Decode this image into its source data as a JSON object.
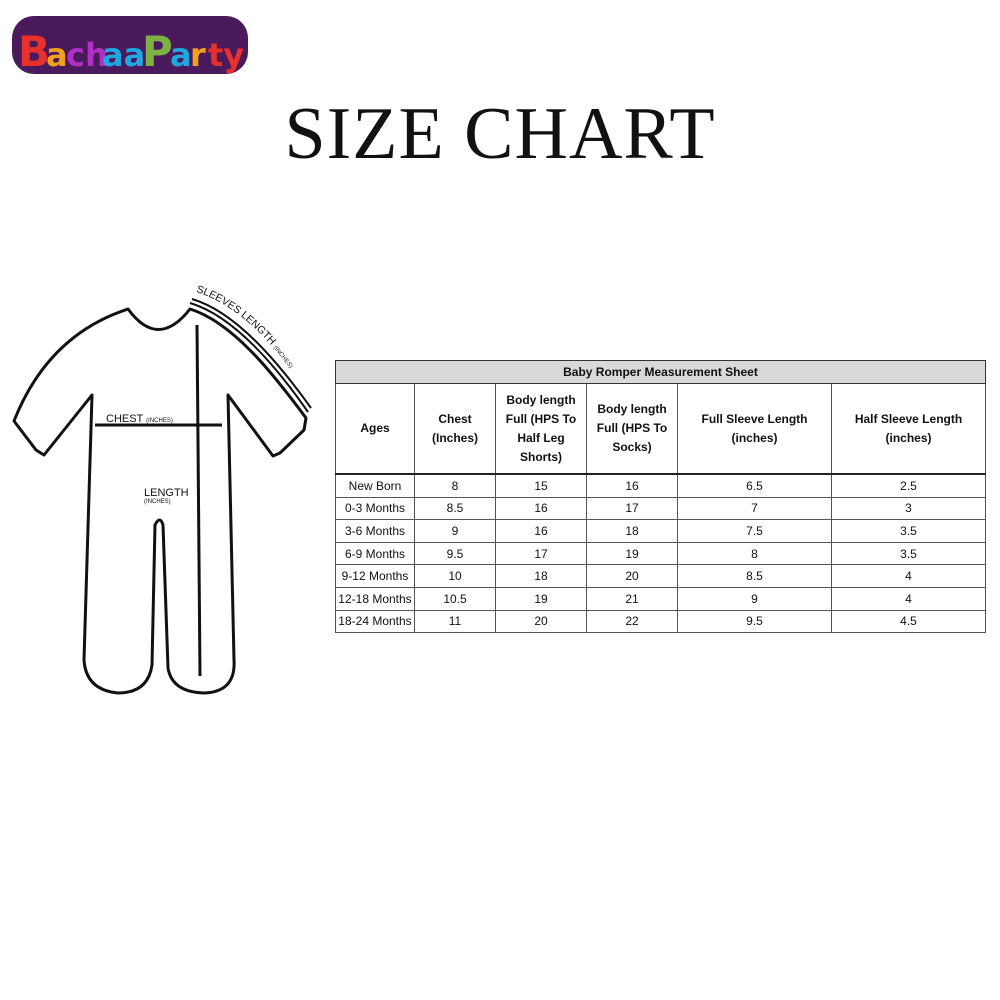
{
  "brand": {
    "logo_text": "BachaaParty",
    "colors": [
      "#e8312b",
      "#b02fc4",
      "#7bb241",
      "#f2a11d",
      "#1fa8e0",
      "#4a1a5c"
    ]
  },
  "page": {
    "title": "SIZE CHART"
  },
  "diagram": {
    "sleeves_label": "SLEEVES LENGTH",
    "sleeves_unit": "(INCHES)",
    "chest_label": "CHEST",
    "chest_unit": "(INCHES)",
    "length_label": "LENGTH",
    "length_unit": "(INCHES)"
  },
  "table": {
    "title": "Baby Romper Measurement Sheet",
    "headers": [
      "Ages",
      "Chest (Inches)",
      "Body length Full (HPS To Half Leg Shorts)",
      "Body length Full (HPS To Socks)",
      "Full Sleeve Length (inches)",
      "Half Sleeve Length (inches)"
    ],
    "rows": [
      [
        "New Born",
        "8",
        "15",
        "16",
        "6.5",
        "2.5"
      ],
      [
        "0-3 Months",
        "8.5",
        "16",
        "17",
        "7",
        "3"
      ],
      [
        "3-6 Months",
        "9",
        "16",
        "18",
        "7.5",
        "3.5"
      ],
      [
        "6-9 Months",
        "9.5",
        "17",
        "19",
        "8",
        "3.5"
      ],
      [
        "9-12 Months",
        "10",
        "18",
        "20",
        "8.5",
        "4"
      ],
      [
        "12-18 Months",
        "10.5",
        "19",
        "21",
        "9",
        "4"
      ],
      [
        "18-24 Months",
        "11",
        "20",
        "22",
        "9.5",
        "4.5"
      ]
    ]
  }
}
